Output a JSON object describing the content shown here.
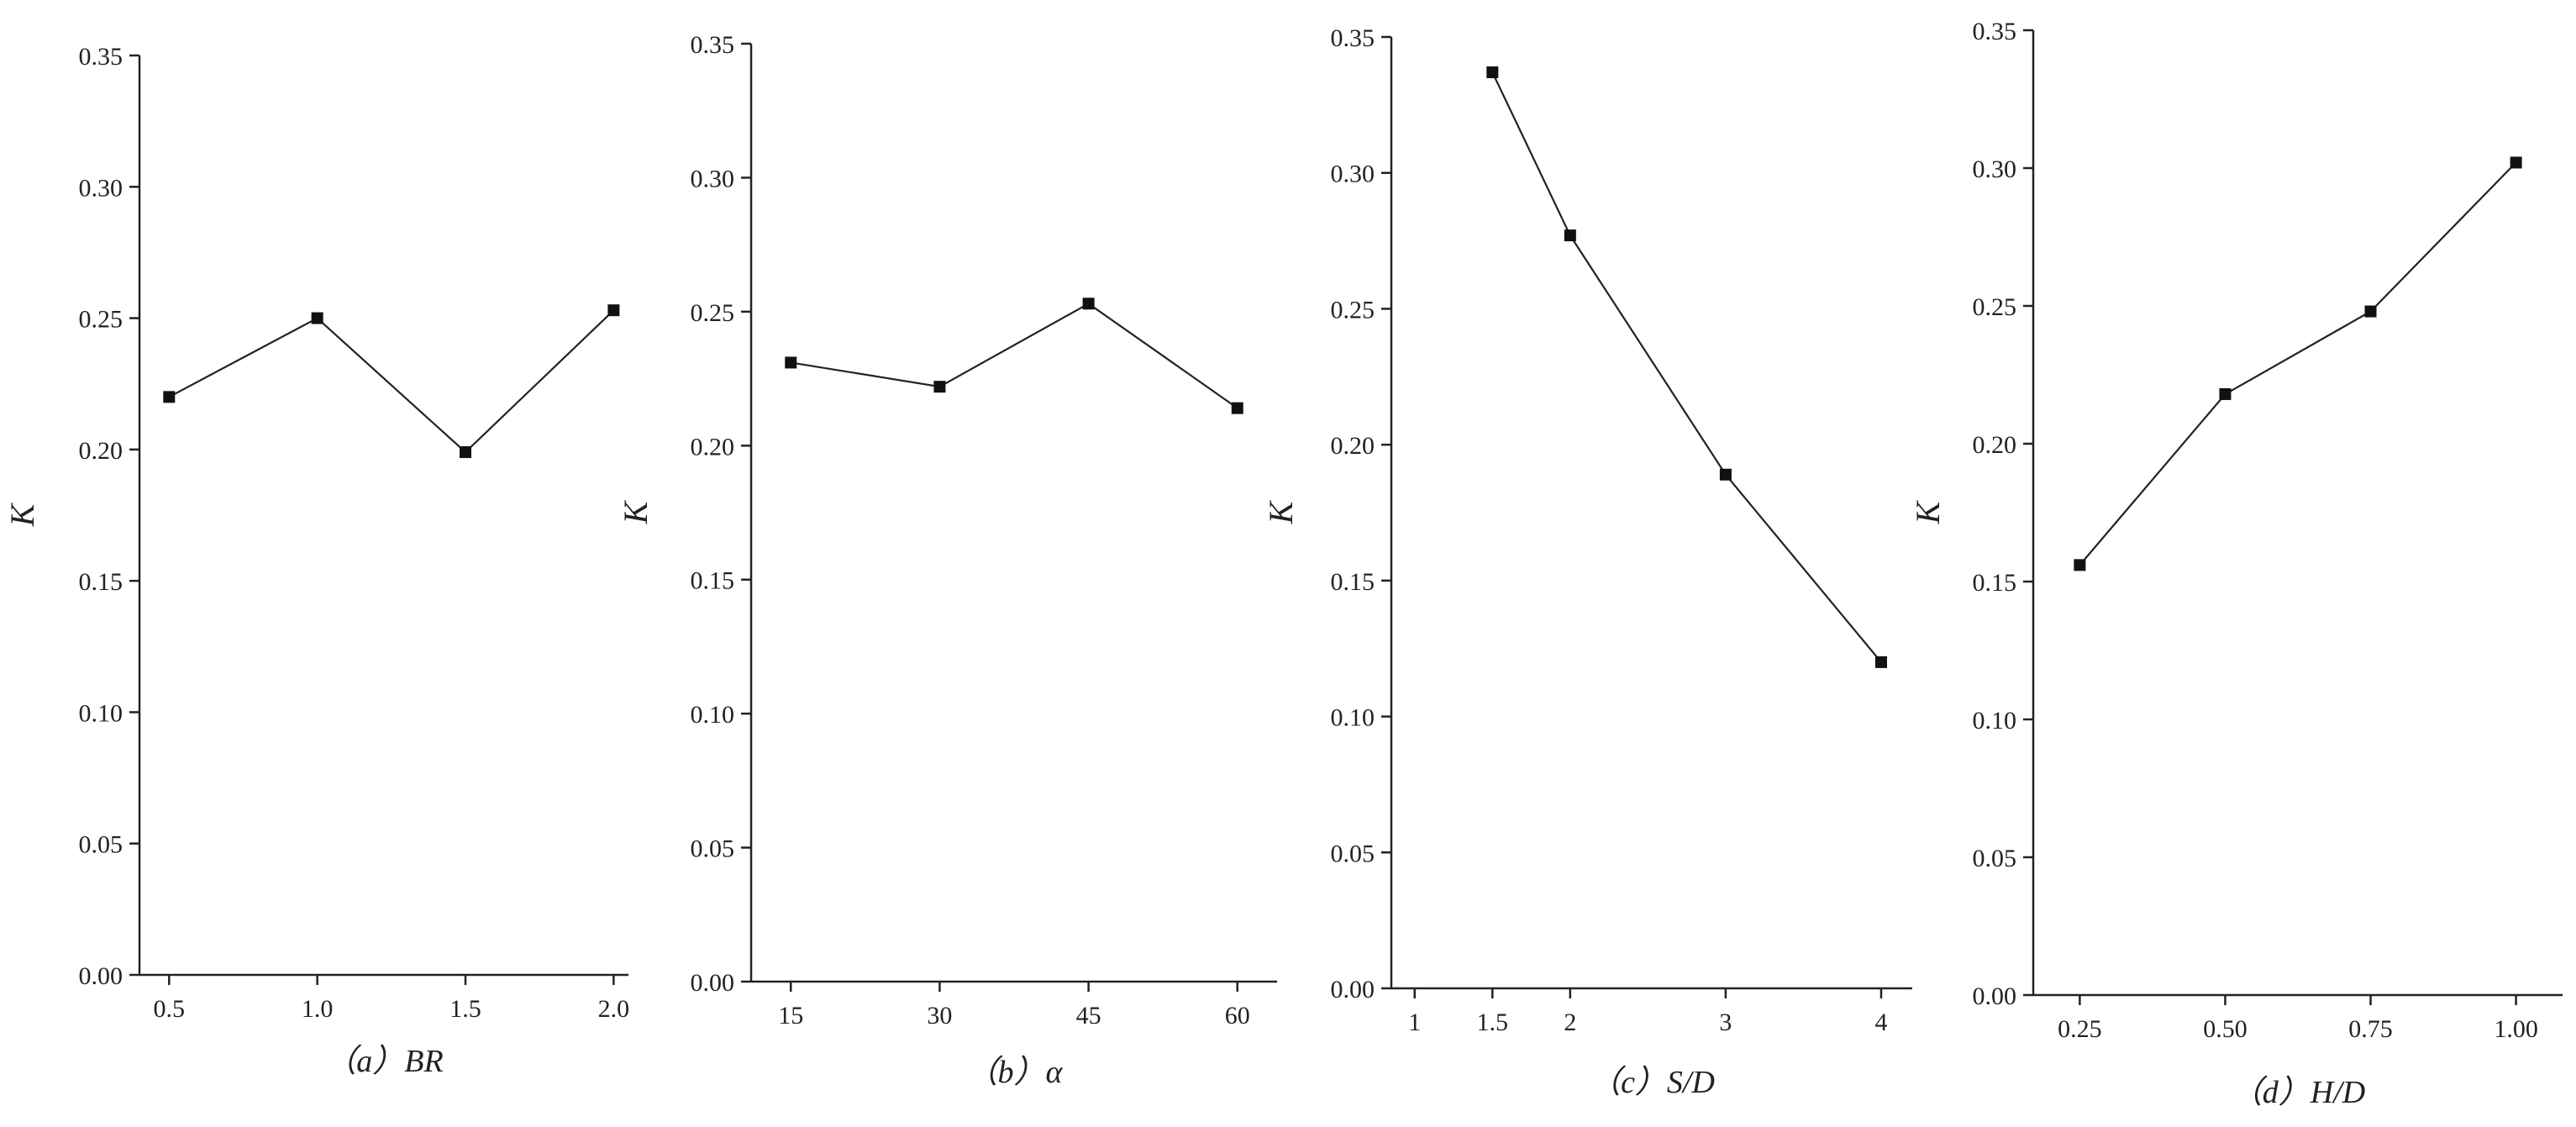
{
  "chart_data": [
    {
      "type": "line",
      "caption": "（a）BR",
      "ylabel": "K",
      "x": [
        0.5,
        1.0,
        1.5,
        2.0
      ],
      "y": [
        0.22,
        0.25,
        0.199,
        0.253
      ],
      "xlim": [
        0.4,
        2.05
      ],
      "ylim": [
        0.0,
        0.35
      ],
      "xticks": [
        "0.5",
        "1.0",
        "1.5",
        "2.0"
      ],
      "yticks": [
        "0.00",
        "0.05",
        "0.10",
        "0.15",
        "0.20",
        "0.25",
        "0.30",
        "0.35"
      ],
      "grid": false,
      "legend": "none"
    },
    {
      "type": "line",
      "caption": "（b）α",
      "ylabel": "K",
      "x": [
        15,
        30,
        45,
        60
      ],
      "y": [
        0.231,
        0.222,
        0.253,
        0.214
      ],
      "xlim": [
        11,
        64
      ],
      "ylim": [
        0.0,
        0.35
      ],
      "xticks": [
        "15",
        "30",
        "45",
        "60"
      ],
      "yticks": [
        "0.00",
        "0.05",
        "0.10",
        "0.15",
        "0.20",
        "0.25",
        "0.30",
        "0.35"
      ],
      "grid": false,
      "legend": "none"
    },
    {
      "type": "line",
      "caption": "（c）S/D",
      "ylabel": "K",
      "x": [
        1.5,
        2,
        3,
        4
      ],
      "y": [
        0.337,
        0.277,
        0.189,
        0.12
      ],
      "xlim": [
        0.85,
        4.2
      ],
      "ylim": [
        0.0,
        0.35
      ],
      "xticks": [
        "1",
        "1.5",
        "2",
        "3",
        "4"
      ],
      "yticks": [
        "0.00",
        "0.05",
        "0.10",
        "0.15",
        "0.20",
        "0.25",
        "0.30",
        "0.35"
      ],
      "grid": false,
      "legend": "none"
    },
    {
      "type": "line",
      "caption": "（d）H/D",
      "ylabel": "K",
      "x": [
        0.25,
        0.5,
        0.75,
        1.0
      ],
      "y": [
        0.156,
        0.218,
        0.248,
        0.302
      ],
      "xlim": [
        0.17,
        1.08
      ],
      "ylim": [
        0.0,
        0.35
      ],
      "xticks": [
        "0.25",
        "0.50",
        "0.75",
        "1.00"
      ],
      "yticks": [
        "0.00",
        "0.05",
        "0.10",
        "0.15",
        "0.20",
        "0.25",
        "0.30",
        "0.35"
      ],
      "grid": false,
      "legend": "none"
    }
  ]
}
